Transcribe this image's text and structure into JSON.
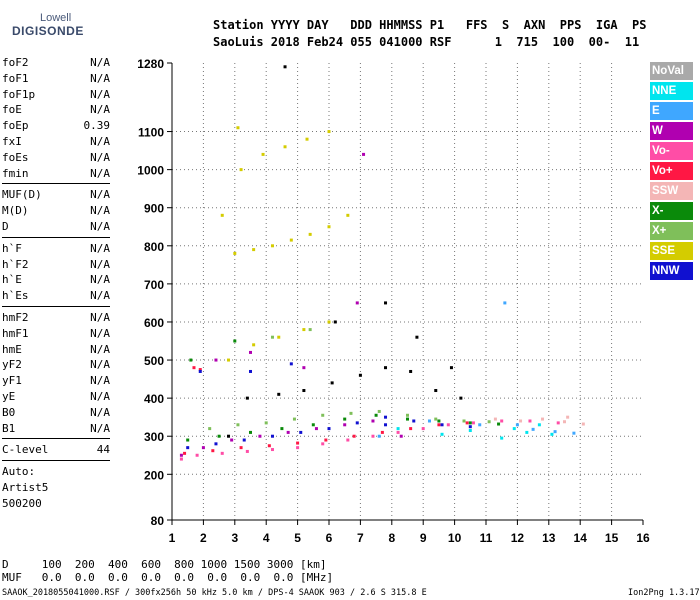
{
  "logo": {
    "line1": "Lowell",
    "line2": "DIGISONDE"
  },
  "header": {
    "line1": "Station YYYY DAY   DDD HHMMSS P1   FFS  S  AXN  PPS  IGA  PS",
    "line2": "SaoLuis 2018 Feb24 055 041000 RSF      1  715  100  00-  11"
  },
  "params": {
    "group1": [
      {
        "name": "foF2",
        "value": "N/A"
      },
      {
        "name": "foF1",
        "value": "N/A"
      },
      {
        "name": "foF1p",
        "value": "N/A"
      },
      {
        "name": "foE",
        "value": "N/A"
      },
      {
        "name": "foEp",
        "value": "0.39"
      },
      {
        "name": "fxI",
        "value": "N/A"
      },
      {
        "name": "foEs",
        "value": "N/A"
      },
      {
        "name": "fmin",
        "value": "N/A"
      }
    ],
    "group2": [
      {
        "name": "MUF(D)",
        "value": "N/A"
      },
      {
        "name": "M(D)",
        "value": "N/A"
      },
      {
        "name": "D",
        "value": "N/A"
      }
    ],
    "group3": [
      {
        "name": "h`F",
        "value": "N/A"
      },
      {
        "name": "h`F2",
        "value": "N/A"
      },
      {
        "name": "h`E",
        "value": "N/A"
      },
      {
        "name": "h`Es",
        "value": "N/A"
      }
    ],
    "group4": [
      {
        "name": "hmF2",
        "value": "N/A"
      },
      {
        "name": "hmF1",
        "value": "N/A"
      },
      {
        "name": "hmE",
        "value": "N/A"
      },
      {
        "name": "yF2",
        "value": "N/A"
      },
      {
        "name": "yF1",
        "value": "N/A"
      },
      {
        "name": "yE",
        "value": "N/A"
      },
      {
        "name": "B0",
        "value": "N/A"
      },
      {
        "name": "B1",
        "value": "N/A"
      }
    ],
    "clevel": {
      "name": "C-level",
      "value": "44"
    },
    "auto": [
      "Auto:",
      "Artist5",
      "500200"
    ]
  },
  "legend": [
    {
      "label": "NoVal",
      "bg": "#a9a9a9",
      "fg": "#ffffff"
    },
    {
      "label": "NNE",
      "bg": "#00e5ee",
      "fg": "#ffffff"
    },
    {
      "label": "E",
      "bg": "#3fa7ff",
      "fg": "#ffffff"
    },
    {
      "label": "W",
      "bg": "#b000b0",
      "fg": "#ffffff"
    },
    {
      "label": "Vo-",
      "bg": "#ff4da6",
      "fg": "#ffffff"
    },
    {
      "label": "Vo+",
      "bg": "#ff1744",
      "fg": "#ffffff"
    },
    {
      "label": "SSW",
      "bg": "#f4b6b6",
      "fg": "#ffffff"
    },
    {
      "label": "X-",
      "bg": "#0a8a0a",
      "fg": "#ffffff"
    },
    {
      "label": "X+",
      "bg": "#7fbf5a",
      "fg": "#ffffff"
    },
    {
      "label": "SSE",
      "bg": "#d4cc00",
      "fg": "#ffffff"
    },
    {
      "label": "NNW",
      "bg": "#1010d0",
      "fg": "#ffffff"
    }
  ],
  "chart_data": {
    "type": "scatter",
    "xlim": [
      1,
      16
    ],
    "ylim": [
      80,
      1280
    ],
    "x_ticks": [
      1,
      2,
      3,
      4,
      5,
      6,
      7,
      8,
      9,
      10,
      11,
      12,
      13,
      14,
      15,
      16
    ],
    "y_ticks": [
      80,
      200,
      300,
      400,
      500,
      600,
      700,
      800,
      900,
      1000,
      1100,
      1280
    ],
    "grid": true,
    "series": [
      {
        "name": "NNE",
        "color": "#00e5ee",
        "points": [
          [
            11.9,
            320
          ],
          [
            12.3,
            310
          ],
          [
            12.7,
            330
          ],
          [
            13.1,
            305
          ],
          [
            11.5,
            295
          ],
          [
            9.6,
            305
          ],
          [
            8.2,
            320
          ],
          [
            10.5,
            315
          ]
        ]
      },
      {
        "name": "E",
        "color": "#3fa7ff",
        "points": [
          [
            12.0,
            330
          ],
          [
            12.5,
            318
          ],
          [
            13.2,
            312
          ],
          [
            13.8,
            308
          ],
          [
            9.2,
            340
          ],
          [
            10.8,
            330
          ],
          [
            7.6,
            300
          ],
          [
            11.6,
            650
          ]
        ]
      },
      {
        "name": "W",
        "color": "#b000b0",
        "points": [
          [
            1.3,
            250
          ],
          [
            2.0,
            270
          ],
          [
            2.9,
            290
          ],
          [
            3.8,
            300
          ],
          [
            4.7,
            310
          ],
          [
            5.6,
            320
          ],
          [
            6.5,
            330
          ],
          [
            7.4,
            340
          ],
          [
            8.3,
            300
          ],
          [
            6.9,
            650
          ],
          [
            7.1,
            1040
          ],
          [
            3.5,
            520
          ],
          [
            5.2,
            480
          ],
          [
            2.4,
            500
          ]
        ]
      },
      {
        "name": "Vo-",
        "color": "#ff4da6",
        "points": [
          [
            1.3,
            240
          ],
          [
            1.8,
            250
          ],
          [
            2.6,
            255
          ],
          [
            3.4,
            260
          ],
          [
            4.2,
            265
          ],
          [
            5.0,
            270
          ],
          [
            5.8,
            280
          ],
          [
            6.6,
            290
          ],
          [
            7.4,
            300
          ],
          [
            8.2,
            310
          ],
          [
            9.0,
            320
          ],
          [
            9.8,
            330
          ],
          [
            10.6,
            335
          ],
          [
            11.5,
            340
          ],
          [
            12.4,
            340
          ],
          [
            13.3,
            335
          ]
        ]
      },
      {
        "name": "Vo+",
        "color": "#ff1744",
        "points": [
          [
            1.4,
            255
          ],
          [
            2.3,
            262
          ],
          [
            3.2,
            270
          ],
          [
            4.1,
            275
          ],
          [
            5.0,
            282
          ],
          [
            5.9,
            290
          ],
          [
            6.8,
            300
          ],
          [
            7.7,
            310
          ],
          [
            8.6,
            320
          ],
          [
            9.5,
            330
          ],
          [
            10.4,
            335
          ],
          [
            1.7,
            480
          ],
          [
            1.9,
            475
          ]
        ]
      },
      {
        "name": "SSW",
        "color": "#f4b6b6",
        "points": [
          [
            12.1,
            340
          ],
          [
            12.8,
            345
          ],
          [
            13.5,
            338
          ],
          [
            14.1,
            332
          ],
          [
            11.3,
            345
          ],
          [
            13.6,
            350
          ]
        ]
      },
      {
        "name": "X-",
        "color": "#0a8a0a",
        "points": [
          [
            1.5,
            290
          ],
          [
            2.5,
            300
          ],
          [
            3.5,
            310
          ],
          [
            4.5,
            320
          ],
          [
            5.5,
            330
          ],
          [
            6.5,
            345
          ],
          [
            7.5,
            355
          ],
          [
            8.5,
            345
          ],
          [
            9.5,
            340
          ],
          [
            10.5,
            335
          ],
          [
            11.4,
            332
          ],
          [
            1.6,
            500
          ],
          [
            3.0,
            550
          ]
        ]
      },
      {
        "name": "X+",
        "color": "#7fbf5a",
        "points": [
          [
            2.2,
            320
          ],
          [
            3.1,
            330
          ],
          [
            4.0,
            335
          ],
          [
            4.9,
            345
          ],
          [
            5.8,
            355
          ],
          [
            6.7,
            360
          ],
          [
            7.6,
            365
          ],
          [
            8.5,
            355
          ],
          [
            9.4,
            345
          ],
          [
            10.3,
            340
          ],
          [
            11.1,
            338
          ],
          [
            4.2,
            560
          ],
          [
            5.4,
            580
          ]
        ]
      },
      {
        "name": "SSE",
        "color": "#d4cc00",
        "points": [
          [
            3.0,
            780
          ],
          [
            3.6,
            790
          ],
          [
            4.2,
            800
          ],
          [
            4.8,
            815
          ],
          [
            5.4,
            830
          ],
          [
            6.0,
            850
          ],
          [
            6.6,
            880
          ],
          [
            3.2,
            1000
          ],
          [
            3.9,
            1040
          ],
          [
            4.6,
            1060
          ],
          [
            5.3,
            1080
          ],
          [
            6.0,
            1100
          ],
          [
            2.8,
            500
          ],
          [
            3.6,
            540
          ],
          [
            4.4,
            560
          ],
          [
            5.2,
            580
          ],
          [
            6.0,
            600
          ],
          [
            2.6,
            880
          ],
          [
            3.1,
            1110
          ]
        ]
      },
      {
        "name": "NNW",
        "color": "#1010d0",
        "points": [
          [
            1.5,
            270
          ],
          [
            2.4,
            280
          ],
          [
            3.3,
            290
          ],
          [
            4.2,
            300
          ],
          [
            5.1,
            310
          ],
          [
            6.0,
            320
          ],
          [
            6.9,
            335
          ],
          [
            7.8,
            350
          ],
          [
            8.7,
            340
          ],
          [
            9.6,
            330
          ],
          [
            10.5,
            325
          ],
          [
            3.5,
            470
          ],
          [
            4.8,
            490
          ],
          [
            1.9,
            470
          ],
          [
            7.8,
            330
          ]
        ]
      },
      {
        "name": "NoVal",
        "color": "#000000",
        "points": [
          [
            3.4,
            400
          ],
          [
            4.4,
            410
          ],
          [
            5.2,
            420
          ],
          [
            6.1,
            440
          ],
          [
            7.0,
            460
          ],
          [
            7.8,
            480
          ],
          [
            8.6,
            470
          ],
          [
            9.4,
            420
          ],
          [
            10.2,
            400
          ],
          [
            2.8,
            300
          ],
          [
            6.2,
            600
          ],
          [
            7.8,
            650
          ],
          [
            8.8,
            560
          ],
          [
            9.9,
            480
          ],
          [
            4.6,
            1270
          ]
        ]
      }
    ]
  },
  "footer": {
    "line1": "D     100  200  400  600  800 1000 1500 3000 [km]",
    "line2": "MUF   0.0  0.0  0.0  0.0  0.0  0.0  0.0  0.0 [MHz]",
    "line3": "SAAOK_2018055041000.RSF / 300fx256h 50 kHz 5.0 km / DPS-4 SAAOK 903 / 2.6 S 315.8 E",
    "line4": "Ion2Png 1.3.17"
  }
}
